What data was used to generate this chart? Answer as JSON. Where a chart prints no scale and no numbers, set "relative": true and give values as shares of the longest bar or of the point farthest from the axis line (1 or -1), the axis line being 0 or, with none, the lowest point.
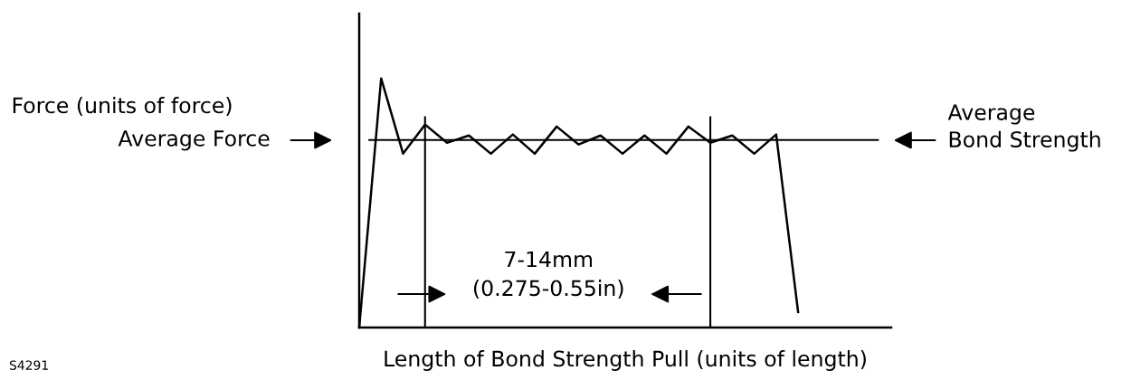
{
  "chart_data": {
    "type": "line",
    "relative": true,
    "xlabel": "Length of Bond Strength Pull (units of length)",
    "categories": [
      null,
      null,
      null,
      null,
      null,
      null,
      null,
      null,
      null,
      null,
      null,
      null,
      null,
      null,
      null,
      null,
      null,
      null,
      null,
      null,
      null
    ],
    "tick_labels": false,
    "legend": false,
    "marker": "none",
    "line_style": "solid",
    "series": [
      {
        "color": "#000000",
        "values": [
          0,
          1,
          0.698,
          0.815,
          0.742,
          0.771,
          0.698,
          0.775,
          0.698,
          0.807,
          0.735,
          0.771,
          0.698,
          0.771,
          0.698,
          0.807,
          0.742,
          0.771,
          0.698,
          0.775,
          0.062
        ]
      }
    ],
    "ref_lines": [
      {
        "axis": "y",
        "value": 0.753,
        "label": "Average\nBond Strength",
        "color": "#000000"
      }
    ],
    "annotations": [
      "Average Force",
      "7-14mm\n(0.275-0.55in)",
      "S4291",
      "Force (units of force)"
    ]
  }
}
